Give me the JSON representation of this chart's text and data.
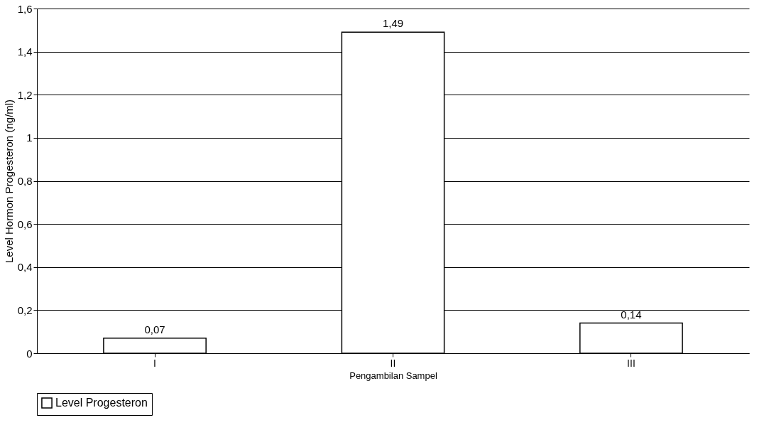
{
  "chart_data": {
    "type": "bar",
    "xlabel": "Pengambilan Sampel",
    "ylabel": "Level Hormon Progesteron (ng/ml)",
    "categories": [
      "I",
      "II",
      "III"
    ],
    "series": [
      {
        "name": "Level Progesteron",
        "color": "#ffffff",
        "values": [
          0.07,
          1.49,
          0.14
        ],
        "value_labels": [
          "0,07",
          "1,49",
          "0,14"
        ]
      }
    ],
    "ylim": [
      0,
      1.6
    ],
    "yticks": [
      0,
      {
        "value": 0.2,
        "label": "0,2"
      },
      {
        "value": 0.4,
        "label": "0,4"
      },
      {
        "value": 0.6,
        "label": "0,6"
      },
      {
        "value": 0.8,
        "label": "0,8"
      },
      1,
      {
        "value": 1.2,
        "label": "1,2"
      },
      {
        "value": 1.4,
        "label": "1,4"
      },
      {
        "value": 1.6,
        "label": "1,6"
      }
    ],
    "grid": "y",
    "legend": "bottom"
  }
}
